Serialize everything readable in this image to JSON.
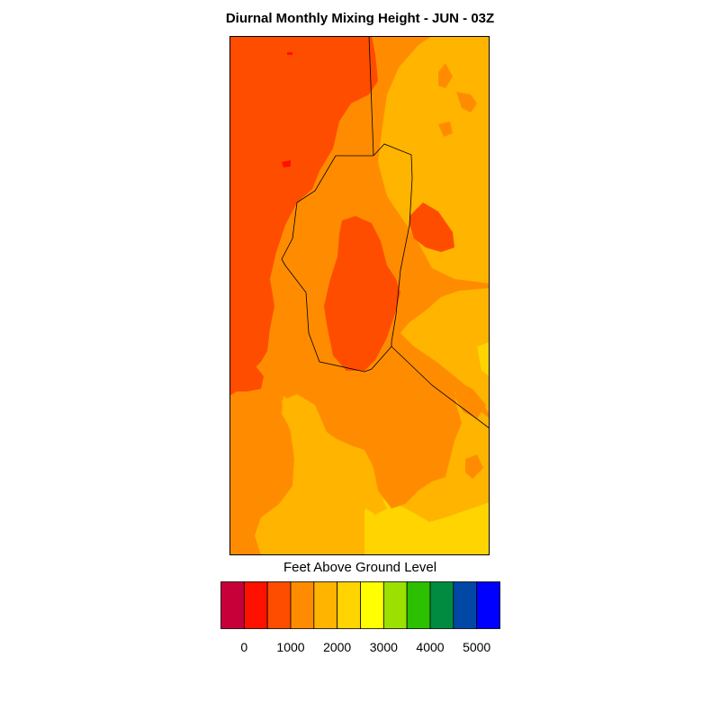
{
  "title": "Diurnal Monthly Mixing Height - JUN - 03Z",
  "colorbar": {
    "label": "Feet Above Ground Level",
    "colors": [
      "#c8003a",
      "#ff1100",
      "#ff4d00",
      "#ff8c00",
      "#ffb400",
      "#ffd400",
      "#ffff00",
      "#9be000",
      "#2cc000",
      "#008b40",
      "#0047a6",
      "#0000ff"
    ],
    "tick_labels": [
      "0",
      "1000",
      "2000",
      "3000",
      "4000",
      "5000"
    ],
    "ticks": [
      0,
      1000,
      2000,
      3000,
      4000,
      5000
    ]
  },
  "map": {
    "legend_colors": {
      "darker_orange_red": "#ff4d00",
      "orange": "#ff8c00",
      "amber": "#ffb400",
      "gold": "#ffd400",
      "red": "#ff1100"
    }
  }
}
